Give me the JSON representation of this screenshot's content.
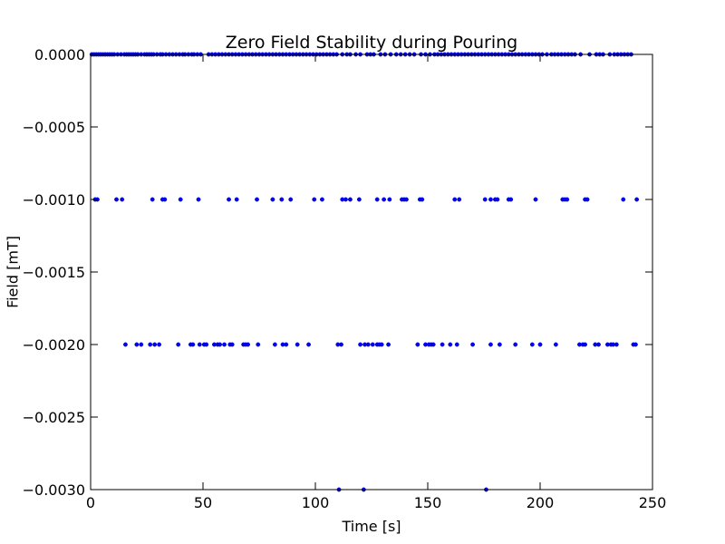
{
  "chart_data": {
    "type": "scatter",
    "title": "Zero Field Stability during Pouring",
    "xlabel": "Time [s]",
    "ylabel": "Field [mT]",
    "xlim": [
      0,
      250
    ],
    "ylim": [
      -0.003,
      0.0
    ],
    "x_ticks": [
      0,
      50,
      100,
      150,
      200,
      250
    ],
    "x_tick_labels": [
      "0",
      "50",
      "100",
      "150",
      "200",
      "250"
    ],
    "y_ticks": [
      0.0,
      -0.0005,
      -0.001,
      -0.0015,
      -0.002,
      -0.0025,
      -0.003
    ],
    "y_tick_labels": [
      "0.0000",
      "−0.0005",
      "−0.0010",
      "−0.0015",
      "−0.0020",
      "−0.0025",
      "−0.0030"
    ],
    "grid": false,
    "marker_color": "#0000ff",
    "series": [
      {
        "values_by_level": [
          {
            "y": 0.0,
            "x": [
              0.5,
              1.5,
              2.5,
              3.5,
              4.5,
              5.5,
              6.5,
              7.5,
              8.5,
              9.5,
              10.5,
              12,
              13.5,
              15,
              16,
              17,
              18,
              19,
              20,
              21,
              22.5,
              24,
              25,
              26,
              27,
              28,
              29.5,
              31,
              32,
              33.5,
              35,
              36.5,
              38,
              39.5,
              41,
              42,
              43.5,
              45,
              46,
              47.5,
              49,
              52.5,
              54,
              55.5,
              57,
              58.5,
              60,
              61.5,
              63,
              64.5,
              66,
              67.5,
              69,
              70.5,
              72,
              73.5,
              75,
              76.5,
              78,
              79.5,
              81,
              82.5,
              84,
              85.5,
              87,
              88.5,
              90,
              91.5,
              93,
              94.5,
              96,
              97.5,
              99,
              100.5,
              102,
              103.5,
              105,
              106.5,
              108,
              109.5,
              112,
              114,
              115.5,
              118,
              120,
              123,
              124.5,
              126,
              129,
              131,
              133.5,
              136,
              138,
              140,
              142,
              144,
              147,
              149,
              151,
              153,
              154.5,
              156,
              157.5,
              159,
              160.5,
              162,
              163.5,
              165,
              166.5,
              168,
              169.5,
              171,
              172.5,
              174,
              175.5,
              177,
              178.5,
              180,
              181.5,
              183,
              184.5,
              186,
              187.5,
              189,
              190.5,
              192,
              193.5,
              195,
              196.5,
              198,
              199.5,
              201,
              203,
              205,
              206.5,
              208,
              209.5,
              211,
              212.5,
              214,
              215.5,
              218,
              222,
              225,
              226.5,
              228,
              231,
              233,
              234.5,
              236,
              237.5,
              239,
              240.5
            ]
          },
          {
            "y": -0.001,
            "x": [
              2,
              3,
              11.5,
              14,
              27.5,
              32,
              33,
              40,
              48,
              61.5,
              65,
              74,
              81,
              85,
              89,
              99.5,
              103,
              112,
              113.5,
              115.5,
              119.5,
              127.5,
              130.5,
              133,
              138.5,
              139.5,
              140.5,
              146.5,
              147.5,
              162,
              164,
              175.5,
              178,
              180,
              181,
              186,
              187,
              198,
              210,
              211,
              212,
              220,
              221,
              237,
              243
            ]
          },
          {
            "y": -0.002,
            "x": [
              15.5,
              20.5,
              22.5,
              26.5,
              28.5,
              30.5,
              39,
              44.5,
              45.5,
              48.5,
              50.5,
              51.5,
              55,
              56.5,
              57.5,
              59.5,
              62,
              63,
              68,
              69,
              70,
              74.5,
              82,
              85.5,
              87,
              92,
              97,
              110,
              111.5,
              120,
              122,
              123.5,
              125.5,
              127.5,
              128.5,
              129.5,
              132.5,
              145.5,
              149,
              150.5,
              151.5,
              152.5,
              156.5,
              160,
              163,
              170,
              178,
              182,
              189,
              196.5,
              200,
              207,
              217.5,
              219,
              220,
              224.5,
              226,
              230,
              231.5,
              232.5,
              234,
              241.5,
              242.5
            ]
          },
          {
            "y": -0.003,
            "x": [
              110.5,
              121.5,
              176
            ]
          }
        ]
      }
    ]
  }
}
